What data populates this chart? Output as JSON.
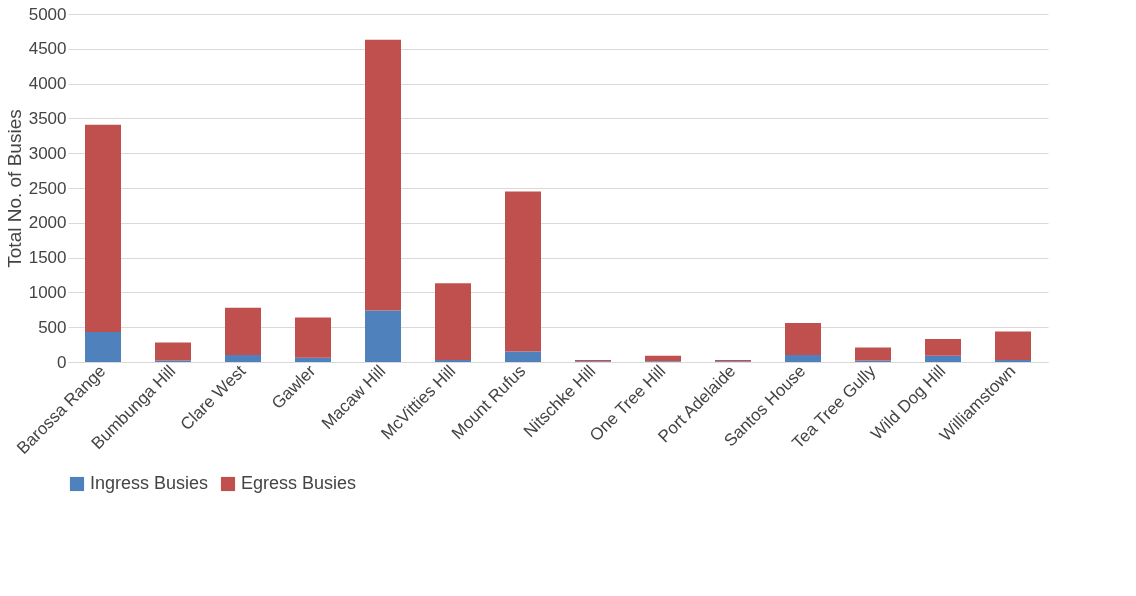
{
  "chart_data": {
    "type": "bar",
    "stacked": true,
    "ylabel": "Total No. of Busies",
    "categories": [
      "Barossa Range",
      "Bumbunga Hill",
      "Clare West",
      "Gawler",
      "Macaw Hill",
      "McVitties Hill",
      "Mount Rufus",
      "Nitschke Hill",
      "One Tree Hill",
      "Port Adelaide",
      "Santos House",
      "Tea Tree Gully",
      "Wild Dog Hill",
      "Williamstown"
    ],
    "series": [
      {
        "name": "Ingress Busies",
        "color": "#4f81bd",
        "values": [
          430,
          20,
          100,
          60,
          740,
          30,
          150,
          10,
          10,
          10,
          100,
          20,
          90,
          30
        ]
      },
      {
        "name": "Egress Busies",
        "color": "#c0504d",
        "values": [
          2980,
          260,
          680,
          580,
          3890,
          1100,
          2300,
          20,
          80,
          20,
          460,
          190,
          240,
          410
        ]
      }
    ],
    "ylim": [
      0,
      5000
    ],
    "yticks": [
      0,
      500,
      1000,
      1500,
      2000,
      2500,
      3000,
      3500,
      4000,
      4500,
      5000
    ],
    "grid": "y",
    "legend": "bottom"
  }
}
